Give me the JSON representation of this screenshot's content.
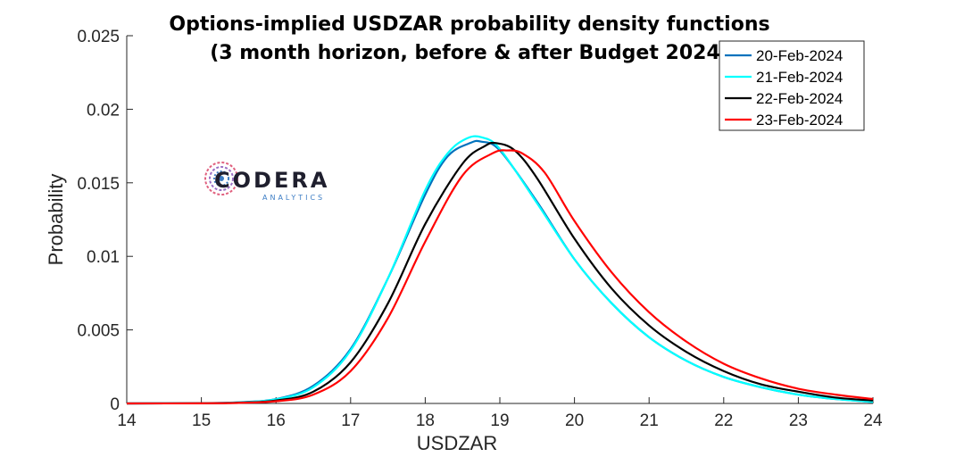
{
  "chart_data": {
    "type": "line",
    "title": "Options-implied USDZAR probability density functions",
    "subtitle": "(3 month horizon, before & after Budget 2024)",
    "xlabel": "USDZAR",
    "ylabel": "Probability",
    "xlim": [
      14,
      24
    ],
    "ylim": [
      0,
      0.025
    ],
    "xticks": [
      "14",
      "15",
      "16",
      "17",
      "18",
      "19",
      "20",
      "21",
      "22",
      "23",
      "24"
    ],
    "yticks": [
      "0",
      "0.005",
      "0.01",
      "0.015",
      "0.02",
      "0.025"
    ],
    "legend_position": "top-right",
    "grid": false,
    "logo": {
      "name": "CODERA",
      "tagline": "ANALYTICS"
    },
    "series": [
      {
        "name": "20-Feb-2024",
        "color": "#0072BD",
        "x": [
          14,
          15,
          15.5,
          16,
          16.5,
          17,
          17.5,
          18,
          18.3,
          18.6,
          18.75,
          19,
          19.5,
          20,
          20.5,
          21,
          21.5,
          22,
          22.5,
          23,
          23.5,
          24
        ],
        "y": [
          0,
          2e-05,
          8e-05,
          0.0003,
          0.0012,
          0.0037,
          0.0085,
          0.0142,
          0.0168,
          0.0177,
          0.0178,
          0.0172,
          0.0137,
          0.0098,
          0.0068,
          0.0045,
          0.0029,
          0.0018,
          0.0011,
          0.0006,
          0.0003,
          0.0001
        ]
      },
      {
        "name": "21-Feb-2024",
        "color": "#00FFFF",
        "x": [
          14,
          15,
          15.5,
          16,
          16.5,
          17,
          17.5,
          18,
          18.3,
          18.55,
          18.75,
          19,
          19.5,
          20,
          20.5,
          21,
          21.5,
          22,
          22.5,
          23,
          23.5,
          24
        ],
        "y": [
          0,
          2e-05,
          7e-05,
          0.00028,
          0.0011,
          0.0036,
          0.0085,
          0.0145,
          0.017,
          0.018,
          0.0181,
          0.0173,
          0.0136,
          0.0098,
          0.0068,
          0.0045,
          0.0029,
          0.0018,
          0.0011,
          0.0006,
          0.0003,
          0.0001
        ]
      },
      {
        "name": "22-Feb-2024",
        "color": "#000000",
        "x": [
          14,
          15,
          15.5,
          16,
          16.5,
          17,
          17.5,
          18,
          18.5,
          18.8,
          18.95,
          19.2,
          19.5,
          20,
          20.5,
          21,
          21.5,
          22,
          22.5,
          23,
          23.5,
          24
        ],
        "y": [
          0,
          1e-05,
          5e-05,
          0.0002,
          0.0008,
          0.0028,
          0.0068,
          0.0122,
          0.0163,
          0.0175,
          0.0177,
          0.0172,
          0.0153,
          0.0112,
          0.0078,
          0.0053,
          0.0035,
          0.0022,
          0.0013,
          0.0008,
          0.0004,
          0.0002
        ]
      },
      {
        "name": "23-Feb-2024",
        "color": "#FF0000",
        "x": [
          14,
          15,
          15.5,
          16,
          16.5,
          17,
          17.5,
          18,
          18.5,
          18.9,
          19.1,
          19.3,
          19.6,
          20,
          20.5,
          21,
          21.5,
          22,
          22.5,
          23,
          23.5,
          24
        ],
        "y": [
          0,
          1e-05,
          4e-05,
          0.00015,
          0.0006,
          0.0022,
          0.0058,
          0.011,
          0.0155,
          0.017,
          0.0172,
          0.017,
          0.0157,
          0.0124,
          0.0089,
          0.0062,
          0.0042,
          0.0027,
          0.0017,
          0.001,
          0.0006,
          0.0003
        ]
      }
    ]
  }
}
